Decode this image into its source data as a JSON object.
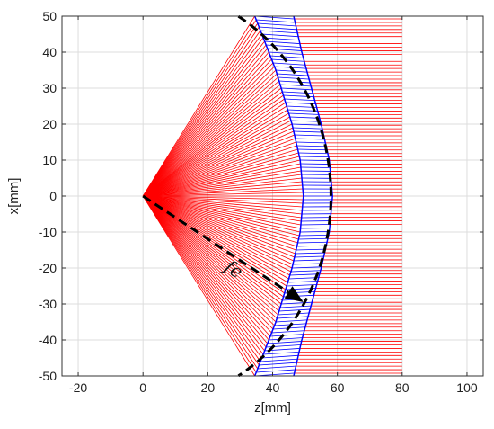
{
  "chart_data": {
    "type": "line",
    "xlabel": "z[mm]",
    "ylabel": "x[mm]",
    "xlim": [
      -25,
      105
    ],
    "ylim": [
      -50,
      50
    ],
    "xticks": [
      -20,
      0,
      20,
      40,
      60,
      80,
      100
    ],
    "yticks": [
      -50,
      -40,
      -30,
      -20,
      -10,
      0,
      10,
      20,
      30,
      40,
      50
    ],
    "grid": true,
    "source_point": [
      0,
      0
    ],
    "focal_length_label": "fe",
    "ray_count": 101,
    "series": [
      {
        "color": "#ff0000",
        "description_kind": "rays-source-to-lens-inner-surface",
        "z_start": 0,
        "x_start": 0
      },
      {
        "color": "#0000ff",
        "description_kind": "rays-inside-lens",
        "inner_surface": {
          "points": [
            [
              34.5,
              50
            ],
            [
              41,
              35
            ],
            [
              46,
              20
            ],
            [
              48.5,
              10
            ],
            [
              49.5,
              0
            ],
            [
              48.5,
              -10
            ],
            [
              46,
              -20
            ],
            [
              41,
              -35
            ],
            [
              34.5,
              -50
            ]
          ]
        },
        "outer_surface": {
          "points": [
            [
              46.5,
              50
            ],
            [
              49,
              40
            ],
            [
              52,
              30
            ],
            [
              55,
              20
            ],
            [
              57.5,
              10
            ],
            [
              58.5,
              0
            ],
            [
              57.5,
              -10
            ],
            [
              55,
              -20
            ],
            [
              52,
              -30
            ],
            [
              49,
              -40
            ],
            [
              46.5,
              -50
            ]
          ]
        }
      },
      {
        "color": "#ff0000",
        "description_kind": "collimated-output-rays",
        "z_end": 80
      },
      {
        "color": "#000000",
        "style": "dashed",
        "description_kind": "focal-arc",
        "radius": 58,
        "angle_range_deg": [
          -59.5,
          59.5
        ]
      },
      {
        "color": "#000000",
        "style": "dashed-arrow",
        "description_kind": "focal-length-arrow",
        "from": [
          0,
          0
        ],
        "to": [
          49.5,
          -29.5
        ]
      }
    ]
  }
}
